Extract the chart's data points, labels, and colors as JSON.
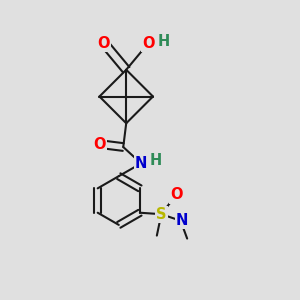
{
  "bg_color": "#e0e0e0",
  "bond_color": "#1a1a1a",
  "bond_width": 1.5,
  "figsize": [
    3.0,
    3.0
  ],
  "dpi": 100,
  "colors": {
    "O": "#ff0000",
    "N": "#0000cd",
    "S": "#b8b800",
    "H": "#2e8b57",
    "C": "#1a1a1a"
  },
  "font_size_atoms": 10.5
}
